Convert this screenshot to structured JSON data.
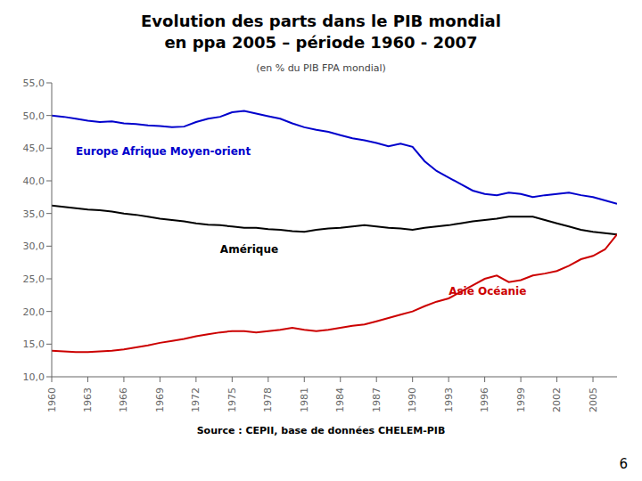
{
  "chart_data": {
    "type": "line",
    "title": "Evolution des parts dans le PIB mondial\nen ppa 2005 – période 1960 - 2007",
    "subtitle": "(en % du PIB FPA mondial)",
    "source": "Source : CEPII, base de données CHELEM-PIB",
    "page_number": "6",
    "x": [
      1960,
      1961,
      1962,
      1963,
      1964,
      1965,
      1966,
      1967,
      1968,
      1969,
      1970,
      1971,
      1972,
      1973,
      1974,
      1975,
      1976,
      1977,
      1978,
      1979,
      1980,
      1981,
      1982,
      1983,
      1984,
      1985,
      1986,
      1987,
      1988,
      1989,
      1990,
      1991,
      1992,
      1993,
      1994,
      1995,
      1996,
      1997,
      1998,
      1999,
      2000,
      2001,
      2002,
      2003,
      2004,
      2005,
      2006,
      2007
    ],
    "series": [
      {
        "name": "Europe Afrique Moyen-orient",
        "color": "#0000CC",
        "values": [
          50.0,
          49.8,
          49.5,
          49.2,
          49.0,
          49.1,
          48.8,
          48.7,
          48.5,
          48.4,
          48.2,
          48.3,
          49.0,
          49.5,
          49.8,
          50.5,
          50.7,
          50.3,
          49.9,
          49.5,
          48.8,
          48.2,
          47.8,
          47.5,
          47.0,
          46.5,
          46.2,
          45.8,
          45.3,
          45.7,
          45.2,
          43.0,
          41.5,
          40.5,
          39.5,
          38.5,
          38.0,
          37.8,
          38.2,
          38.0,
          37.5,
          37.8,
          38.0,
          38.2,
          37.8,
          37.5,
          37.0,
          36.5
        ]
      },
      {
        "name": "Amérique",
        "color": "#000000",
        "values": [
          36.2,
          36.0,
          35.8,
          35.6,
          35.5,
          35.3,
          35.0,
          34.8,
          34.5,
          34.2,
          34.0,
          33.8,
          33.5,
          33.3,
          33.2,
          33.0,
          32.8,
          32.8,
          32.6,
          32.5,
          32.3,
          32.2,
          32.5,
          32.7,
          32.8,
          33.0,
          33.2,
          33.0,
          32.8,
          32.7,
          32.5,
          32.8,
          33.0,
          33.2,
          33.5,
          33.8,
          34.0,
          34.2,
          34.5,
          34.5,
          34.5,
          34.0,
          33.5,
          33.0,
          32.5,
          32.2,
          32.0,
          31.8
        ]
      },
      {
        "name": "Asie Océanie",
        "color": "#CC0000",
        "values": [
          14.0,
          13.9,
          13.8,
          13.8,
          13.9,
          14.0,
          14.2,
          14.5,
          14.8,
          15.2,
          15.5,
          15.8,
          16.2,
          16.5,
          16.8,
          17.0,
          17.0,
          16.8,
          17.0,
          17.2,
          17.5,
          17.2,
          17.0,
          17.2,
          17.5,
          17.8,
          18.0,
          18.5,
          19.0,
          19.5,
          20.0,
          20.8,
          21.5,
          22.0,
          23.0,
          24.0,
          25.0,
          25.5,
          24.5,
          24.8,
          25.5,
          25.8,
          26.2,
          27.0,
          28.0,
          28.5,
          29.5,
          31.8
        ]
      }
    ],
    "xlim": [
      1960,
      2007
    ],
    "xticks": [
      1960,
      1963,
      1966,
      1969,
      1972,
      1975,
      1978,
      1981,
      1984,
      1987,
      1990,
      1993,
      1996,
      1999,
      2002,
      2005
    ],
    "ylim": [
      10.0,
      55.0
    ],
    "yticks": [
      {
        "value": 10.0,
        "label": "10,0"
      },
      {
        "value": 15.0,
        "label": "15,0"
      },
      {
        "value": 20.0,
        "label": "20,0"
      },
      {
        "value": 25.0,
        "label": "25,0"
      },
      {
        "value": 30.0,
        "label": "30,0"
      },
      {
        "value": 35.0,
        "label": "35,0"
      },
      {
        "value": 40.0,
        "label": "40,0"
      },
      {
        "value": 45.0,
        "label": "45,0"
      },
      {
        "value": 50.0,
        "label": "50,0"
      },
      {
        "value": 55.0,
        "label": "55,0"
      }
    ],
    "grid": false,
    "annotations": [
      {
        "text": "Europe Afrique Moyen-orient",
        "x": 1962,
        "y": 44.0,
        "color": "#0000CC"
      },
      {
        "text": "Amérique",
        "x": 1974,
        "y": 29.0,
        "color": "#000000"
      },
      {
        "text": "Asie Océanie",
        "x": 1993,
        "y": 22.5,
        "color": "#CC0000"
      }
    ]
  }
}
